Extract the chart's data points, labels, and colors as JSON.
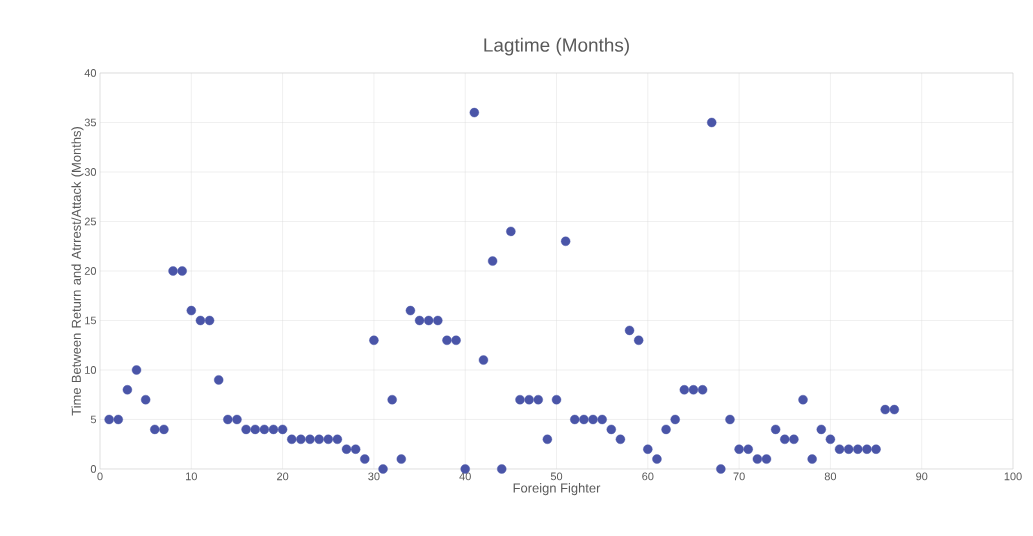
{
  "chart_data": {
    "type": "scatter",
    "title": "Lagtime (Months)",
    "xlabel": "Foreign Fighter",
    "ylabel": "Time Between Return and Atrrest/Attack (Months)",
    "x": [
      1,
      2,
      3,
      4,
      5,
      6,
      7,
      8,
      9,
      10,
      11,
      12,
      13,
      14,
      15,
      16,
      17,
      18,
      19,
      20,
      21,
      22,
      23,
      24,
      25,
      26,
      27,
      28,
      29,
      30,
      31,
      32,
      33,
      34,
      35,
      36,
      37,
      38,
      39,
      40,
      41,
      42,
      43,
      44,
      45,
      46,
      47,
      48,
      49,
      50,
      51,
      52,
      53,
      54,
      55,
      56,
      57,
      58,
      59,
      60,
      61,
      62,
      63,
      64,
      65,
      66,
      67,
      68,
      69,
      70,
      71,
      72,
      73,
      74,
      75,
      76,
      77,
      78,
      79,
      80,
      81,
      82,
      83,
      84,
      85,
      86,
      87
    ],
    "series": [
      {
        "color": "#4a55a8",
        "values": [
          5,
          5,
          8,
          10,
          7,
          4,
          4,
          20,
          20,
          16,
          15,
          15,
          9,
          5,
          5,
          4,
          4,
          4,
          4,
          4,
          3,
          3,
          3,
          3,
          3,
          3,
          2,
          2,
          1,
          13,
          0,
          7,
          1,
          16,
          15,
          15,
          15,
          13,
          13,
          0,
          36,
          11,
          21,
          0,
          24,
          7,
          7,
          7,
          3,
          7,
          23,
          5,
          5,
          5,
          5,
          4,
          3,
          14,
          13,
          2,
          1,
          4,
          5,
          8,
          8,
          8,
          35,
          0,
          5,
          2,
          2,
          1,
          1,
          4,
          3,
          3,
          7,
          1,
          4,
          3,
          2,
          2,
          2,
          2,
          2,
          6,
          6
        ]
      }
    ],
    "xlim": [
      0,
      100
    ],
    "xticks": [
      0,
      10,
      20,
      30,
      40,
      50,
      60,
      70,
      80,
      90,
      100
    ],
    "ylim": [
      0,
      40
    ],
    "yticks": [
      0,
      5,
      10,
      15,
      20,
      25,
      30,
      35,
      40
    ],
    "grid": true,
    "marker": "circle"
  }
}
